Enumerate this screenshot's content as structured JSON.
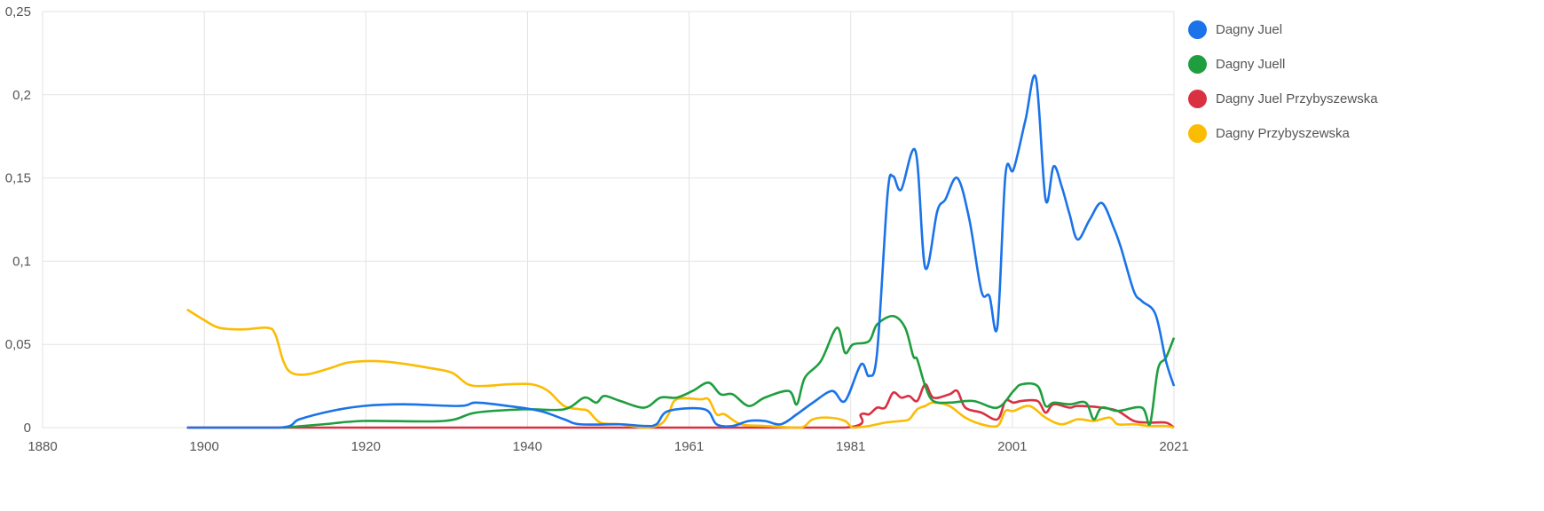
{
  "chart_data": {
    "type": "line",
    "title": "",
    "xlabel": "",
    "ylabel": "",
    "xlim": [
      1880,
      2021
    ],
    "ylim": [
      0,
      0.25
    ],
    "grid": true,
    "legend_position": "right",
    "x_tick_labels": [
      "1880",
      "1900",
      "1920",
      "1940",
      "1961",
      "1981",
      "2001",
      "2021"
    ],
    "y_tick_labels": [
      "0",
      "0,05",
      "0,1",
      "0,15",
      "0,2",
      "0,25"
    ],
    "series": [
      {
        "name": "Dagny Juel",
        "color": "#1a73e8",
        "x": [
          1898,
          1909.5,
          1912,
          1916,
          1920,
          1925,
          1932,
          1934,
          1938,
          1942,
          1945,
          1947,
          1952,
          1955,
          1956.5,
          1958,
          1962.5,
          1964,
          1966,
          1968,
          1970,
          1972,
          1974,
          1976,
          1978.4,
          1980,
          1982,
          1983,
          1984,
          1985.3,
          1986,
          1987,
          1988.8,
          1990,
          1991.5,
          1992.5,
          1994,
          1995.5,
          1997,
          1998,
          1999,
          2000,
          2001,
          2002.5,
          2003.8,
          2005,
          2006,
          2007,
          2008,
          2009,
          2010.5,
          2012,
          2013.5,
          2014.4,
          2016,
          2017,
          2018.7,
          2020,
          2021
        ],
        "y": [
          0,
          0,
          0.005,
          0.01,
          0.013,
          0.014,
          0.013,
          0.015,
          0.013,
          0.01,
          0.005,
          0.002,
          0.002,
          0.001,
          0.002,
          0.01,
          0.011,
          0.002,
          0.001,
          0.004,
          0.004,
          0.002,
          0.008,
          0.015,
          0.022,
          0.016,
          0.038,
          0.031,
          0.045,
          0.14,
          0.151,
          0.143,
          0.166,
          0.096,
          0.13,
          0.137,
          0.15,
          0.125,
          0.082,
          0.079,
          0.061,
          0.152,
          0.155,
          0.185,
          0.21,
          0.137,
          0.157,
          0.145,
          0.128,
          0.113,
          0.125,
          0.135,
          0.12,
          0.108,
          0.082,
          0.076,
          0.068,
          0.04,
          0.025
        ]
      },
      {
        "name": "Dagny Juell",
        "color": "#1e9e3e",
        "x": [
          1910,
          1915,
          1920,
          1930,
          1934,
          1940,
          1945,
          1947.5,
          1949,
          1950,
          1952,
          1955,
          1957,
          1959,
          1961,
          1963,
          1964.5,
          1966,
          1968,
          1970,
          1973,
          1974,
          1975,
          1977,
          1979,
          1980,
          1981,
          1983,
          1984,
          1986,
          1987.5,
          1988.5,
          1989,
          1990,
          1991,
          1993,
          1996,
          1999,
          2001,
          2002,
          2004,
          2005,
          2006,
          2008,
          2010,
          2011,
          2012,
          2014,
          2017,
          2018,
          2019,
          2020,
          2021
        ],
        "y": [
          0,
          0.002,
          0.004,
          0.004,
          0.009,
          0.011,
          0.011,
          0.018,
          0.015,
          0.019,
          0.016,
          0.012,
          0.018,
          0.018,
          0.022,
          0.027,
          0.02,
          0.02,
          0.013,
          0.018,
          0.022,
          0.014,
          0.03,
          0.04,
          0.06,
          0.045,
          0.05,
          0.052,
          0.062,
          0.067,
          0.06,
          0.043,
          0.041,
          0.025,
          0.016,
          0.015,
          0.016,
          0.012,
          0.022,
          0.026,
          0.025,
          0.013,
          0.015,
          0.014,
          0.015,
          0.005,
          0.012,
          0.01,
          0.012,
          0.002,
          0.035,
          0.042,
          0.054
        ]
      },
      {
        "name": "Dagny Juel Przybyszewska",
        "color": "#d93042",
        "x": [
          1898,
          1930,
          1960,
          1980,
          1982,
          1983,
          1984,
          1985,
          1986,
          1987,
          1988,
          1989,
          1990,
          1991,
          1993,
          1994,
          1995,
          1997,
          1999,
          2000,
          2001,
          2002,
          2004,
          2005,
          2006,
          2008,
          2009,
          2012,
          2014,
          2016,
          2018,
          2020,
          2021
        ],
        "y": [
          0,
          0,
          0,
          0,
          0.008,
          0.008,
          0.012,
          0.012,
          0.021,
          0.018,
          0.019,
          0.016,
          0.026,
          0.018,
          0.02,
          0.022,
          0.012,
          0.009,
          0.005,
          0.016,
          0.015,
          0.016,
          0.016,
          0.009,
          0.014,
          0.012,
          0.013,
          0.012,
          0.01,
          0.004,
          0.003,
          0.003,
          0
        ]
      },
      {
        "name": "Dagny Przybyszewska",
        "color": "#fbbc04",
        "x": [
          1898,
          1900,
          1902,
          1905,
          1908,
          1909,
          1910,
          1911,
          1913,
          1916,
          1918,
          1921,
          1924,
          1928,
          1931,
          1933,
          1935,
          1938,
          1941,
          1943,
          1945,
          1947,
          1948,
          1949.5,
          1952,
          1955,
          1957,
          1958,
          1959,
          1962,
          1963,
          1964,
          1965,
          1967,
          1970,
          1974,
          1975,
          1976,
          1978,
          1980,
          1981,
          1983,
          1985,
          1987,
          1988,
          1989,
          1990,
          1991,
          1993,
          1995,
          1997,
          1999,
          2000,
          2001,
          2003,
          2005,
          2007,
          2009,
          2011,
          2013,
          2014,
          2016,
          2018,
          2020,
          2021
        ],
        "y": [
          0.071,
          0.065,
          0.06,
          0.059,
          0.06,
          0.056,
          0.04,
          0.033,
          0.032,
          0.036,
          0.039,
          0.04,
          0.039,
          0.036,
          0.033,
          0.026,
          0.025,
          0.026,
          0.026,
          0.022,
          0.013,
          0.011,
          0.01,
          0.003,
          0.002,
          0,
          0.002,
          0.008,
          0.017,
          0.017,
          0.017,
          0.008,
          0.008,
          0.002,
          0.001,
          0,
          0.001,
          0.005,
          0.006,
          0.004,
          0,
          0.001,
          0.003,
          0.004,
          0.005,
          0.011,
          0.013,
          0.015,
          0.013,
          0.006,
          0.002,
          0.001,
          0.01,
          0.01,
          0.013,
          0.006,
          0.002,
          0.005,
          0.004,
          0.006,
          0.002,
          0.002,
          0.001,
          0.001,
          0
        ]
      }
    ]
  }
}
